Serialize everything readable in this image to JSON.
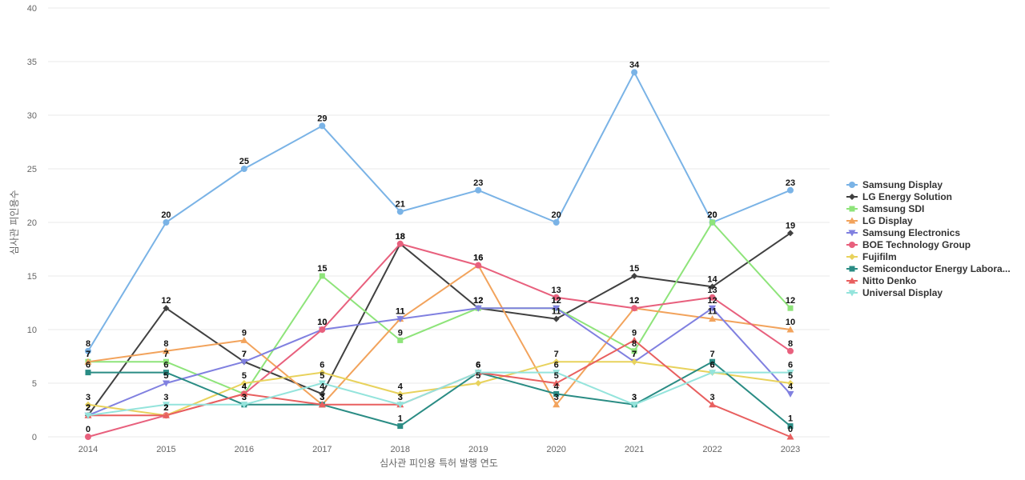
{
  "chart_data": {
    "type": "line",
    "title": "",
    "xlabel": "심사관 피인용 특허 발행 연도",
    "ylabel": "심사관 피인용수",
    "x": [
      "2014",
      "2015",
      "2016",
      "2017",
      "2018",
      "2019",
      "2020",
      "2021",
      "2022",
      "2023"
    ],
    "ylim": [
      0,
      40
    ],
    "yticks": [
      "0",
      "5",
      "10",
      "15",
      "20",
      "25",
      "30",
      "35",
      "40"
    ],
    "grid": true,
    "legend_position": "right",
    "series": [
      {
        "name": "Samsung Display",
        "color": "#7ab3e6",
        "marker": "circle",
        "values": [
          8,
          20,
          25,
          29,
          21,
          23,
          20,
          34,
          20,
          23
        ]
      },
      {
        "name": "LG Energy Solution",
        "color": "#404040",
        "marker": "diamond",
        "values": [
          2,
          12,
          7,
          4,
          18,
          12,
          11,
          15,
          14,
          19
        ]
      },
      {
        "name": "Samsung SDI",
        "color": "#8ee47a",
        "marker": "square",
        "values": [
          7,
          7,
          4,
          15,
          9,
          12,
          12,
          8,
          20,
          12
        ]
      },
      {
        "name": "LG Display",
        "color": "#f2a35c",
        "marker": "triangle",
        "values": [
          7,
          8,
          9,
          3,
          11,
          16,
          3,
          12,
          11,
          10
        ]
      },
      {
        "name": "Samsung Electronics",
        "color": "#8080e0",
        "marker": "triangle-down",
        "values": [
          2,
          5,
          7,
          10,
          11,
          12,
          12,
          7,
          12,
          4
        ]
      },
      {
        "name": "BOE Technology Group",
        "color": "#e8607d",
        "marker": "circle",
        "values": [
          0,
          2,
          4,
          10,
          18,
          16,
          13,
          12,
          13,
          8
        ]
      },
      {
        "name": "Fujifilm",
        "color": "#e8d25c",
        "marker": "diamond",
        "values": [
          3,
          2,
          5,
          6,
          4,
          5,
          7,
          7,
          6,
          5
        ]
      },
      {
        "name": "Semiconductor Energy Labora...",
        "color": "#2a8c84",
        "marker": "square",
        "values": [
          6,
          6,
          3,
          3,
          1,
          6,
          4,
          3,
          7,
          1
        ]
      },
      {
        "name": "Nitto Denko",
        "color": "#e85f5f",
        "marker": "triangle",
        "values": [
          2,
          2,
          4,
          3,
          3,
          6,
          5,
          9,
          3,
          0
        ]
      },
      {
        "name": "Universal Display",
        "color": "#94e4dc",
        "marker": "triangle-down",
        "values": [
          2,
          3,
          3,
          5,
          3,
          6,
          6,
          3,
          6,
          6
        ]
      }
    ]
  }
}
